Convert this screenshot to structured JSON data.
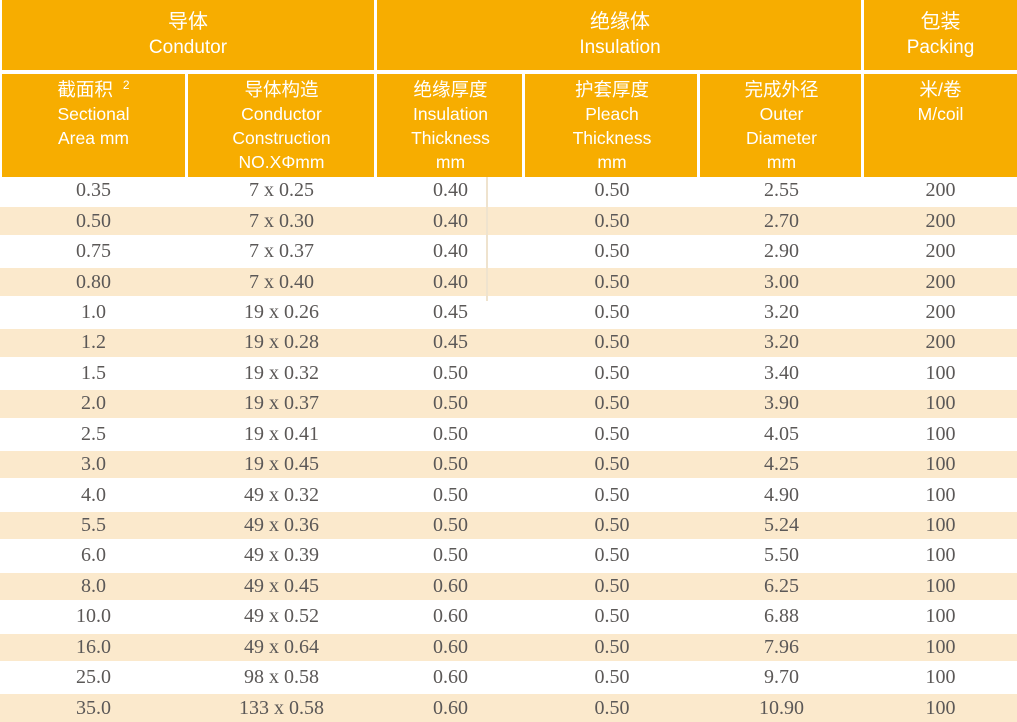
{
  "colors": {
    "header_orange": "#F7AD00",
    "stripe": "#FBE9CC",
    "data_text": "#5B5857",
    "header_text": "#FFFFFF"
  },
  "header": {
    "groups": [
      {
        "zh": "导体",
        "en": "Condutor"
      },
      {
        "zh": "绝缘体",
        "en": "Insulation"
      },
      {
        "zh": "包装",
        "en": "Packing"
      }
    ],
    "columns": [
      {
        "lines": [
          "截面积",
          "Sectional",
          "Area mm"
        ],
        "sup": "2"
      },
      {
        "lines": [
          "导体构造",
          "Conductor",
          "Construction",
          "NO.XΦmm"
        ]
      },
      {
        "lines": [
          "绝缘厚度",
          "Insulation",
          "Thickness",
          "mm"
        ]
      },
      {
        "lines": [
          "护套厚度",
          "Pleach",
          "Thickness",
          "mm"
        ]
      },
      {
        "lines": [
          "完成外径",
          "Outer",
          "Diameter",
          "mm"
        ]
      },
      {
        "lines": [
          "米/卷",
          "M/coil"
        ]
      }
    ]
  },
  "rows": [
    [
      "0.35",
      "7 x 0.25",
      "0.40",
      "0.50",
      "2.55",
      "200"
    ],
    [
      "0.50",
      "7 x 0.30",
      "0.40",
      "0.50",
      "2.70",
      "200"
    ],
    [
      "0.75",
      "7 x 0.37",
      "0.40",
      "0.50",
      "2.90",
      "200"
    ],
    [
      "0.80",
      "7 x 0.40",
      "0.40",
      "0.50",
      "3.00",
      "200"
    ],
    [
      "1.0",
      "19 x 0.26",
      "0.45",
      "0.50",
      "3.20",
      "200"
    ],
    [
      "1.2",
      "19 x 0.28",
      "0.45",
      "0.50",
      "3.20",
      "200"
    ],
    [
      "1.5",
      "19 x 0.32",
      "0.50",
      "0.50",
      "3.40",
      "100"
    ],
    [
      "2.0",
      "19 x 0.37",
      "0.50",
      "0.50",
      "3.90",
      "100"
    ],
    [
      "2.5",
      "19 x 0.41",
      "0.50",
      "0.50",
      "4.05",
      "100"
    ],
    [
      "3.0",
      "19 x 0.45",
      "0.50",
      "0.50",
      "4.25",
      "100"
    ],
    [
      "4.0",
      "49 x 0.32",
      "0.50",
      "0.50",
      "4.90",
      "100"
    ],
    [
      "5.5",
      "49 x 0.36",
      "0.50",
      "0.50",
      "5.24",
      "100"
    ],
    [
      "6.0",
      "49 x 0.39",
      "0.50",
      "0.50",
      "5.50",
      "100"
    ],
    [
      "8.0",
      "49 x 0.45",
      "0.60",
      "0.50",
      "6.25",
      "100"
    ],
    [
      "10.0",
      "49 x 0.52",
      "0.60",
      "0.50",
      "6.88",
      "100"
    ],
    [
      "16.0",
      "49 x 0.64",
      "0.60",
      "0.50",
      "7.96",
      "100"
    ],
    [
      "25.0",
      "98 x 0.58",
      "0.60",
      "0.50",
      "9.70",
      "100"
    ],
    [
      "35.0",
      "133 x 0.58",
      "0.60",
      "0.50",
      "10.90",
      "100"
    ]
  ]
}
